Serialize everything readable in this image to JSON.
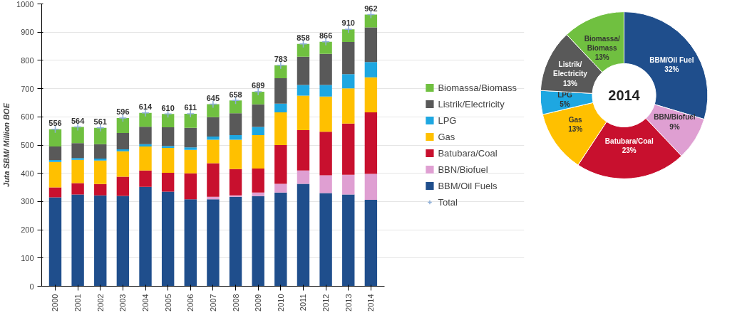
{
  "chart_data": [
    {
      "type": "bar",
      "stacked": true,
      "ylabel": "Juta SBM/ Million BOE",
      "categories": [
        "2000",
        "2001",
        "2002",
        "2003",
        "2004",
        "2005",
        "2006",
        "2007",
        "2008",
        "2009",
        "2010",
        "2011",
        "2012",
        "2013",
        "2014"
      ],
      "series": [
        {
          "name": "BBM/Oil Fuels",
          "color": "#1f4e8c",
          "values": [
            315,
            325,
            322,
            320,
            352,
            335,
            308,
            308,
            317,
            319,
            332,
            363,
            330,
            325,
            306
          ]
        },
        {
          "name": "BBN/Biofuel",
          "color": "#df9fd2",
          "values": [
            0,
            0,
            0,
            0,
            0,
            0,
            0,
            9,
            5,
            13,
            31,
            47,
            63,
            70,
            92
          ]
        },
        {
          "name": "Batubara/Coal",
          "color": "#c8102e",
          "values": [
            35,
            40,
            40,
            68,
            58,
            67,
            92,
            119,
            93,
            85,
            137,
            143,
            154,
            181,
            218
          ]
        },
        {
          "name": "Gas",
          "color": "#ffc000",
          "values": [
            90,
            83,
            83,
            90,
            85,
            88,
            83,
            83,
            104,
            118,
            116,
            122,
            125,
            125,
            124
          ]
        },
        {
          "name": "LPG",
          "color": "#1ea7e1",
          "values": [
            7,
            6,
            7,
            7,
            8,
            7,
            9,
            11,
            16,
            29,
            31,
            38,
            41,
            50,
            54
          ]
        },
        {
          "name": "Listrik/Electricity",
          "color": "#595959",
          "values": [
            48,
            53,
            51,
            58,
            62,
            66,
            69,
            69,
            78,
            80,
            90,
            100,
            110,
            114,
            123
          ]
        },
        {
          "name": "Biomassa/Biomass",
          "color": "#70c040",
          "values": [
            61,
            57,
            58,
            53,
            49,
            47,
            50,
            46,
            45,
            45,
            46,
            45,
            43,
            45,
            45
          ]
        },
        {
          "name": "Total",
          "type": "scatter",
          "marker": "cross",
          "color": "#8fb0d8",
          "values": [
            556,
            564,
            561,
            596,
            614,
            610,
            611,
            645,
            658,
            689,
            783,
            858,
            866,
            910,
            962
          ]
        }
      ],
      "totals": [
        "556",
        "564",
        "561",
        "596",
        "614",
        "610",
        "611",
        "645",
        "658",
        "689",
        "783",
        "858",
        "866",
        "910",
        "962"
      ],
      "ylim": [
        0,
        1000
      ],
      "yticks": [
        0,
        100,
        200,
        300,
        400,
        500,
        600,
        700,
        800,
        900,
        1000
      ],
      "grid": "y",
      "legend": "right"
    },
    {
      "type": "donut",
      "title": "2014",
      "categories": [
        "BBM/Oil Fuel",
        "BBN/Biofuel",
        "Batubara/Coal",
        "Gas",
        "LPG",
        "Listrik/ Electricity",
        "Biomassa/ Biomass"
      ],
      "values": [
        32,
        9,
        23,
        13,
        5,
        13,
        13
      ],
      "value_labels": [
        "32%",
        "9%",
        "23%",
        "13%",
        "5%",
        "13%",
        "13%"
      ],
      "colors": [
        "#1f4e8c",
        "#df9fd2",
        "#c8102e",
        "#ffc000",
        "#1ea7e1",
        "#595959",
        "#70c040"
      ]
    }
  ]
}
